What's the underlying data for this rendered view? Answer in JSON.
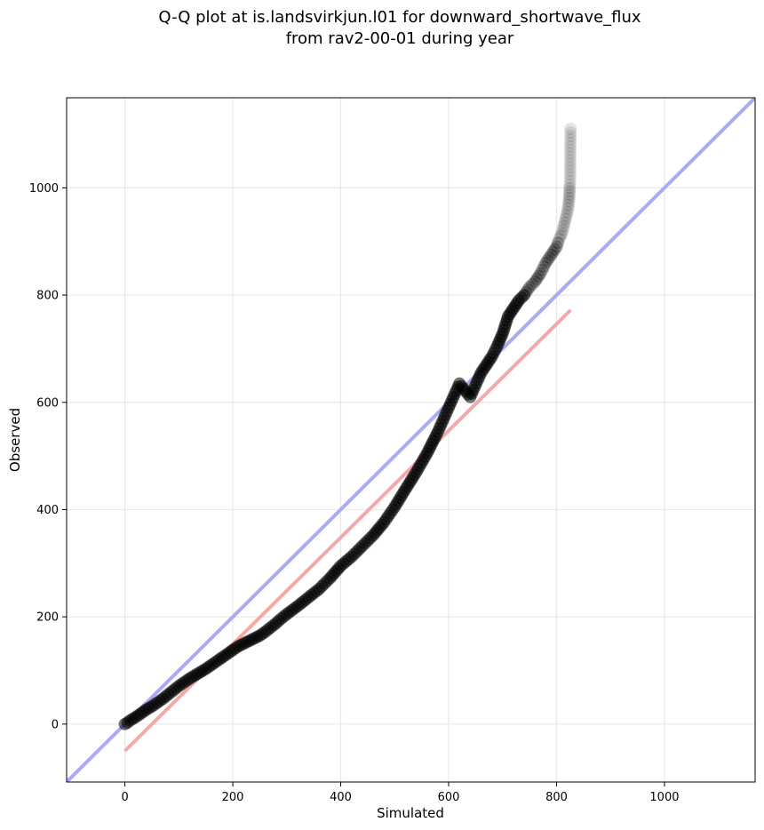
{
  "chart_data": {
    "type": "scatter",
    "title_lines": [
      "Q-Q plot at is.landsvirkjun.l01 for downward_shortwave_flux",
      "from rav2-00-01 during year"
    ],
    "xlabel": "Simulated",
    "ylabel": "Observed",
    "xlim": [
      -108,
      1168
    ],
    "ylim": [
      -108,
      1168
    ],
    "xticks": [
      0,
      200,
      400,
      600,
      800,
      1000
    ],
    "yticks": [
      0,
      200,
      400,
      600,
      800,
      1000
    ],
    "grid": true,
    "series": [
      {
        "kind": "points",
        "color": "#000000",
        "x": [
          0,
          5,
          10,
          20,
          30,
          40,
          50,
          60,
          70,
          80,
          90,
          100,
          110,
          120,
          130,
          140,
          150,
          160,
          170,
          180,
          190,
          200,
          210,
          220,
          230,
          240,
          250,
          260,
          270,
          280,
          290,
          300,
          320,
          340,
          360,
          380,
          400,
          420,
          440,
          460,
          480,
          500,
          520,
          540,
          560,
          580,
          600,
          620,
          640,
          660,
          670,
          680,
          690,
          700,
          710,
          720,
          730,
          740,
          750,
          760,
          770,
          780,
          790,
          800,
          805,
          810,
          815,
          820,
          823,
          825,
          826
        ],
        "y": [
          0,
          3,
          7,
          13,
          20,
          27,
          33,
          40,
          47,
          55,
          63,
          71,
          78,
          85,
          91,
          97,
          103,
          110,
          117,
          124,
          131,
          138,
          145,
          150,
          155,
          160,
          165,
          172,
          180,
          188,
          197,
          205,
          220,
          236,
          252,
          272,
          295,
          312,
          332,
          352,
          376,
          405,
          438,
          470,
          505,
          545,
          590,
          635,
          610,
          655,
          670,
          685,
          705,
          728,
          760,
          775,
          790,
          800,
          815,
          825,
          840,
          860,
          875,
          890,
          905,
          915,
          935,
          955,
          975,
          1012,
          1110
        ]
      },
      {
        "kind": "line",
        "name": "",
        "color": "#aaaaf5",
        "x": [
          -108,
          1168
        ],
        "y": [
          -108,
          1168
        ]
      },
      {
        "kind": "line",
        "name": "",
        "color": "#f5a8a8",
        "x": [
          0,
          826
        ],
        "y": [
          -50,
          772
        ]
      }
    ]
  }
}
